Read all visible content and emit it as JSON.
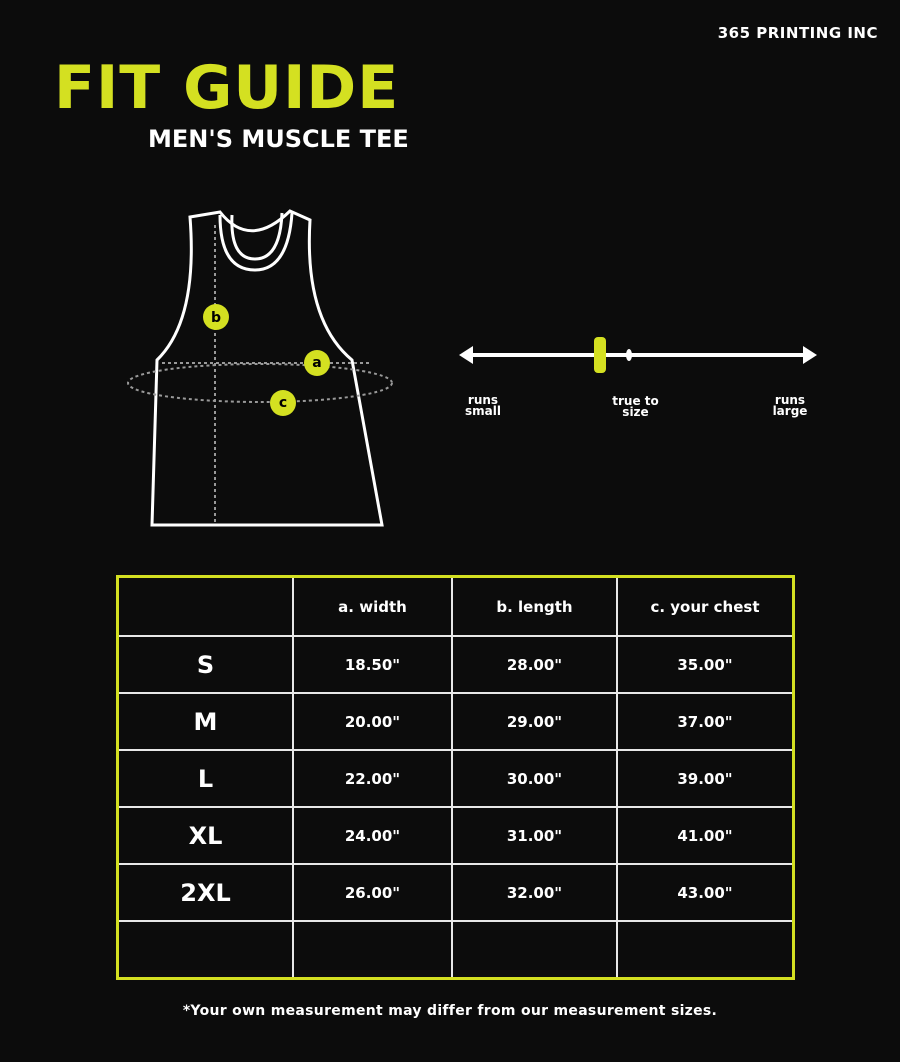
{
  "brand": "365 PRINTING INC",
  "title": "FIT GUIDE",
  "subtitle": "MEN'S MUSCLE TEE",
  "diagram": {
    "markers": [
      "a",
      "b",
      "c"
    ]
  },
  "fit_scale": {
    "labels": [
      "runs small",
      "true to size",
      "runs large"
    ],
    "selected": "true to size"
  },
  "table": {
    "headers": [
      "",
      "a. width",
      "b. length",
      "c. your chest"
    ],
    "rows": [
      [
        "S",
        "18.50\"",
        "28.00\"",
        "35.00\""
      ],
      [
        "M",
        "20.00\"",
        "29.00\"",
        "37.00\""
      ],
      [
        "L",
        "22.00\"",
        "30.00\"",
        "39.00\""
      ],
      [
        "XL",
        "24.00\"",
        "31.00\"",
        "41.00\""
      ],
      [
        "2XL",
        "26.00\"",
        "32.00\"",
        "43.00\""
      ],
      [
        "",
        "",
        "",
        ""
      ]
    ]
  },
  "footnote": "*Your own measurement may differ from our measurement sizes.",
  "colors": {
    "accent": "#d4e021",
    "background": "#0c0c0c"
  }
}
